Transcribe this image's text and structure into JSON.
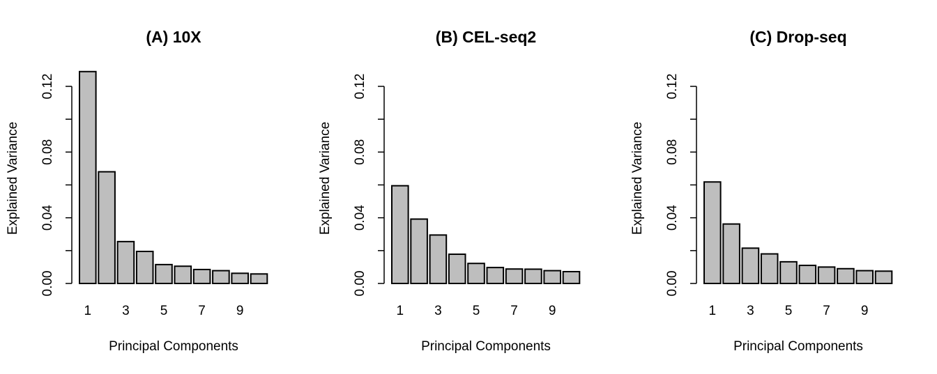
{
  "bar_color": "#bebebe",
  "chart_data": [
    {
      "type": "bar",
      "title": "(A) 10X",
      "xlabel": "Principal Components",
      "ylabel": "Explained Variance",
      "categories": [
        "1",
        "2",
        "3",
        "4",
        "5",
        "6",
        "7",
        "8",
        "9",
        "10"
      ],
      "x_tick_labels": [
        "1",
        "3",
        "5",
        "7",
        "9"
      ],
      "values": [
        0.129,
        0.068,
        0.0255,
        0.0195,
        0.0115,
        0.0105,
        0.0085,
        0.0078,
        0.0062,
        0.0058
      ],
      "ylim": [
        0,
        0.12
      ],
      "y_ticks": [
        "0.00",
        "0.04",
        "0.08",
        "0.12"
      ],
      "grid": false
    },
    {
      "type": "bar",
      "title": "(B) CEL-seq2",
      "xlabel": "Principal Components",
      "ylabel": "Explained Variance",
      "categories": [
        "1",
        "2",
        "3",
        "4",
        "5",
        "6",
        "7",
        "8",
        "9",
        "10"
      ],
      "x_tick_labels": [
        "1",
        "3",
        "5",
        "7",
        "9"
      ],
      "values": [
        0.0595,
        0.0392,
        0.0295,
        0.0178,
        0.0122,
        0.0097,
        0.0088,
        0.0087,
        0.0078,
        0.0072
      ],
      "ylim": [
        0,
        0.12
      ],
      "y_ticks": [
        "0.00",
        "0.04",
        "0.08",
        "0.12"
      ],
      "grid": false
    },
    {
      "type": "bar",
      "title": "(C) Drop-seq",
      "xlabel": "Principal Components",
      "ylabel": "Explained Variance",
      "categories": [
        "1",
        "2",
        "3",
        "4",
        "5",
        "6",
        "7",
        "8",
        "9",
        "10"
      ],
      "x_tick_labels": [
        "1",
        "3",
        "5",
        "7",
        "9"
      ],
      "values": [
        0.0618,
        0.0362,
        0.0215,
        0.018,
        0.0132,
        0.011,
        0.01,
        0.009,
        0.0078,
        0.0075
      ],
      "ylim": [
        0,
        0.12
      ],
      "y_ticks": [
        "0.00",
        "0.04",
        "0.08",
        "0.12"
      ],
      "grid": false
    }
  ]
}
